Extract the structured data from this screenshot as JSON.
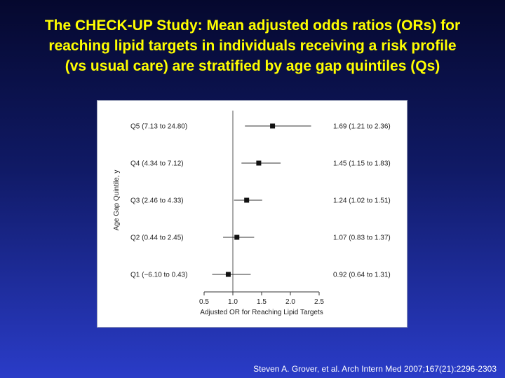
{
  "slide": {
    "title_lines": [
      "The CHECK-UP Study: Mean adjusted odds ratios (ORs) for",
      "reaching lipid targets in individuals receiving a risk profile",
      "(vs usual care) are stratified by age gap quintiles (Qs)"
    ],
    "citation": "Steven A. Grover, et al. Arch Intern Med 2007;167(21):2296-2303"
  },
  "chart_data": {
    "type": "forest",
    "xlabel": "Adjusted OR for Reaching Lipid Targets",
    "ylabel": "Age Gap Quintile, y",
    "xlim": [
      0.5,
      2.5
    ],
    "xticks": [
      "0.5",
      "1.0",
      "1.5",
      "2.0",
      "2.5"
    ],
    "reference_line": 1.0,
    "rows": [
      {
        "label": "Q5 (7.13 to 24.80)",
        "or": 1.69,
        "lo": 1.21,
        "hi": 2.36,
        "text": "1.69 (1.21 to 2.36)"
      },
      {
        "label": "Q4 (4.34 to 7.12)",
        "or": 1.45,
        "lo": 1.15,
        "hi": 1.83,
        "text": "1.45 (1.15 to 1.83)"
      },
      {
        "label": "Q3 (2.46 to 4.33)",
        "or": 1.24,
        "lo": 1.02,
        "hi": 1.51,
        "text": "1.24 (1.02 to 1.51)"
      },
      {
        "label": "Q2 (0.44 to 2.45)",
        "or": 1.07,
        "lo": 0.83,
        "hi": 1.37,
        "text": "1.07 (0.83 to 1.37)"
      },
      {
        "label": "Q1 (−6.10 to 0.43)",
        "or": 0.92,
        "lo": 0.64,
        "hi": 1.31,
        "text": "0.92 (0.64 to 1.31)"
      }
    ]
  }
}
